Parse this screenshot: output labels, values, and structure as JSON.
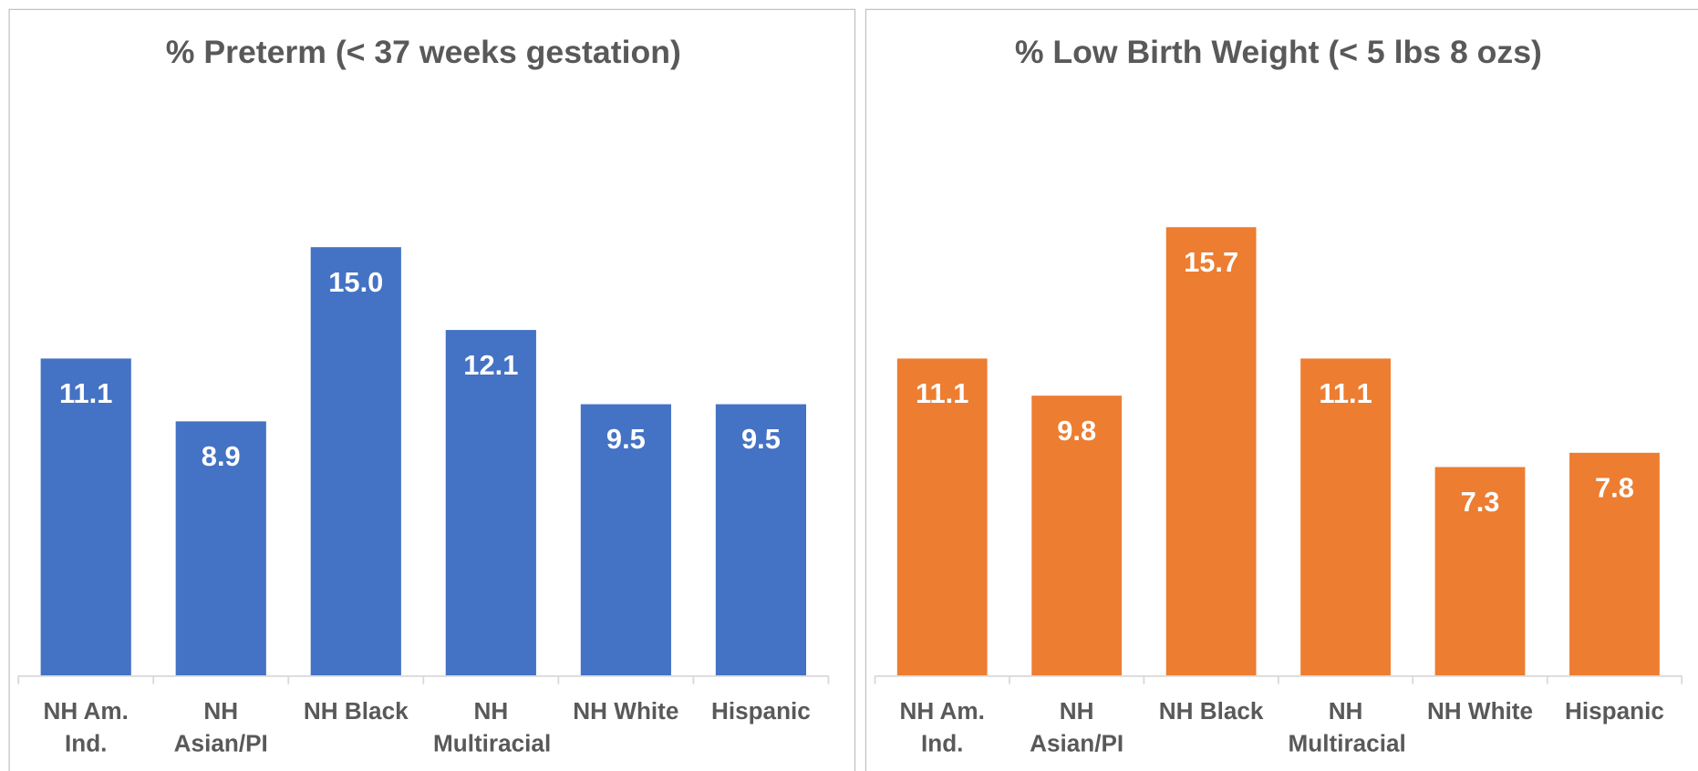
{
  "chart_data": [
    {
      "type": "bar",
      "title": "% Preterm (< 37 weeks gestation)",
      "categories": [
        "NH Am. Ind.",
        "NH Asian/PI",
        "NH Black",
        "NH Multiracial",
        "NH White",
        "Hispanic"
      ],
      "values": [
        11.1,
        8.9,
        15.0,
        12.1,
        9.5,
        9.5
      ],
      "value_labels": [
        "11.1",
        "8.9",
        "15.0",
        "12.1",
        "9.5",
        "9.5"
      ],
      "color": "#4472c4",
      "ylim": [
        0,
        18
      ]
    },
    {
      "type": "bar",
      "title": "% Low Birth Weight (< 5 lbs 8 ozs)",
      "categories": [
        "NH Am. Ind.",
        "NH Asian/PI",
        "NH Black",
        "NH Multiracial",
        "NH White",
        "Hispanic"
      ],
      "values": [
        11.1,
        9.8,
        15.7,
        11.1,
        7.3,
        7.8
      ],
      "value_labels": [
        "11.1",
        "9.8",
        "15.7",
        "11.1",
        "7.3",
        "7.8"
      ],
      "color": "#ed7d31",
      "ylim": [
        0,
        18
      ]
    }
  ]
}
